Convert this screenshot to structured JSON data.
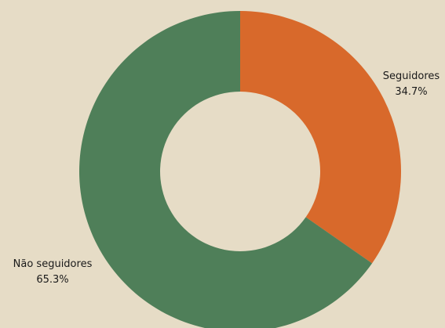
{
  "chart_data": {
    "type": "pie",
    "donut": true,
    "title": "",
    "categories": [
      "Seguidores",
      "Não seguidores"
    ],
    "values": [
      34.7,
      65.3
    ],
    "value_labels": [
      "34.7%",
      "65.3%"
    ],
    "unit": "%",
    "start_angle_deg": 0,
    "direction": "clockwise",
    "legend": "none",
    "colors": [
      "#d8692b",
      "#4f7f59"
    ],
    "background": "#e6dcc6",
    "label_color": "#1a1a1a"
  }
}
